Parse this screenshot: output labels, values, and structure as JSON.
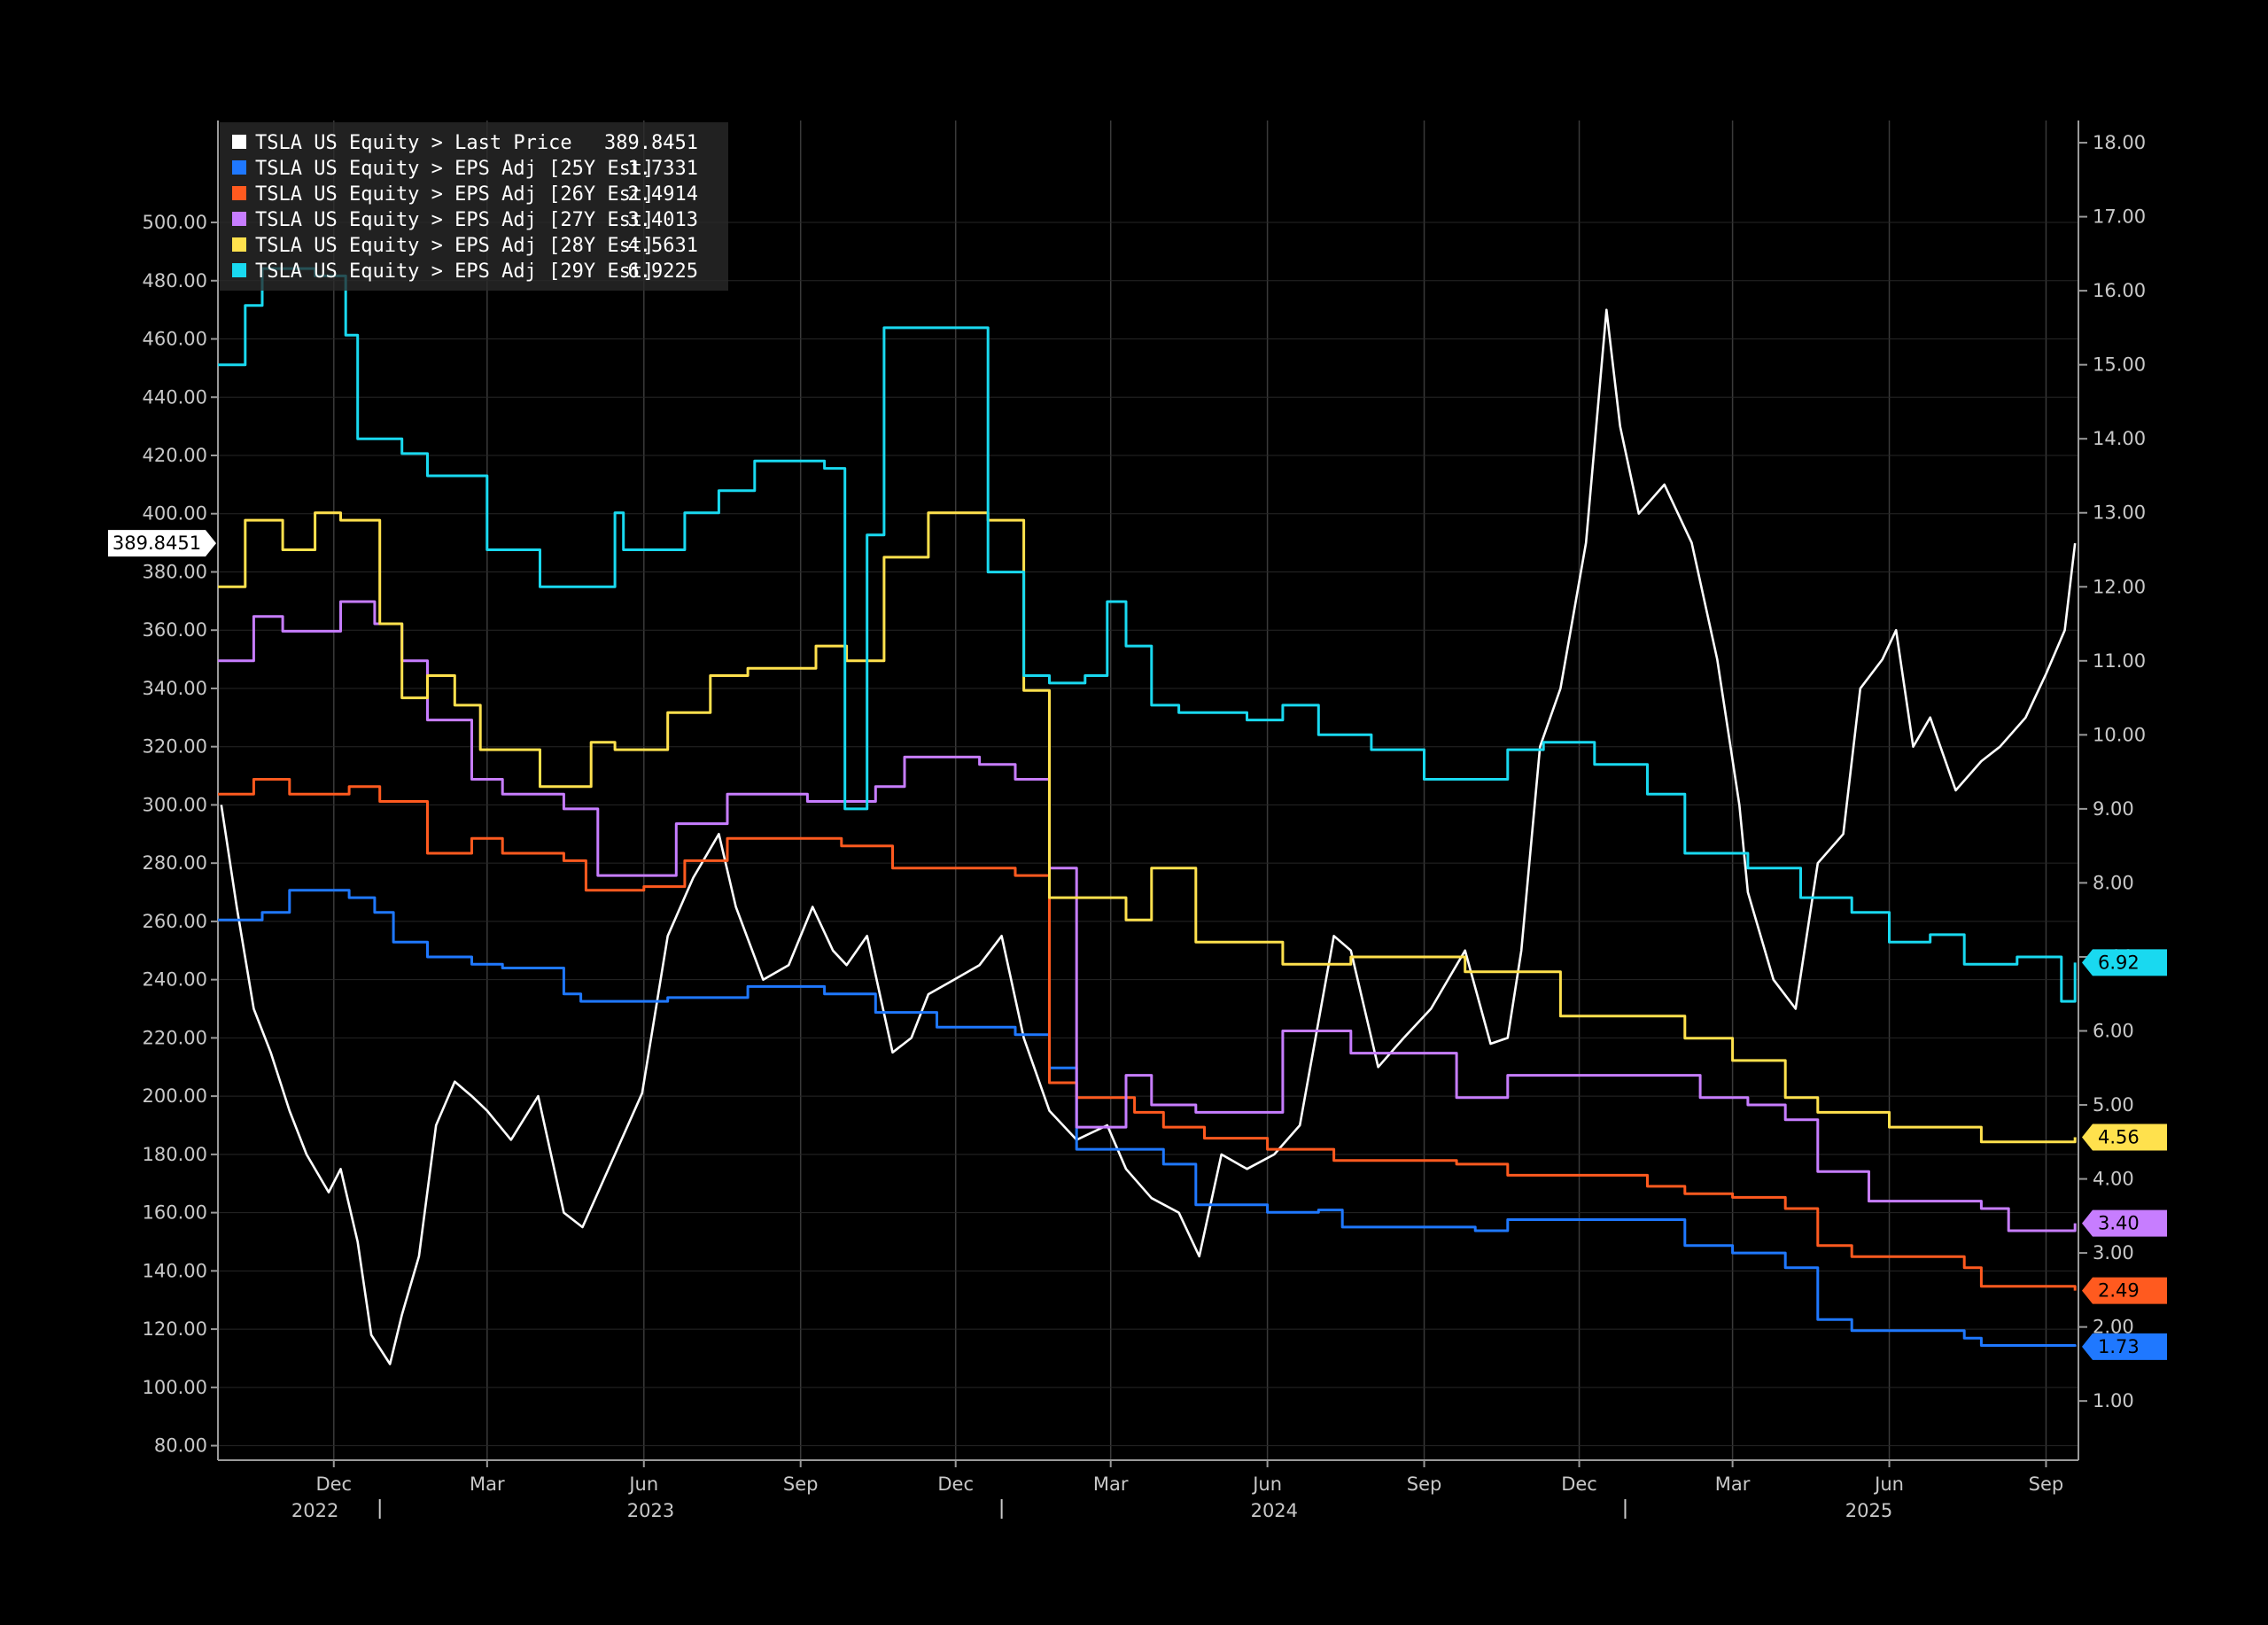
{
  "chart_data": {
    "type": "line",
    "grid": true,
    "legend_position": "top-left",
    "x_tick_labels": [
      "Dec",
      "Mar",
      "Jun",
      "Sep",
      "Dec",
      "Mar",
      "Jun",
      "Sep",
      "Dec",
      "Mar",
      "Jun",
      "Sep"
    ],
    "x_tick_dates": [
      "2022-12-01",
      "2023-03-01",
      "2023-06-01",
      "2023-09-01",
      "2023-12-01",
      "2024-03-01",
      "2024-06-01",
      "2024-09-01",
      "2024-12-01",
      "2025-03-01",
      "2025-06-01",
      "2025-09-01"
    ],
    "x_year_labels": [
      "2022",
      "2023",
      "2024",
      "2025"
    ],
    "x_range": [
      "2022-09-24",
      "2025-09-20"
    ],
    "y_left": {
      "min": 75,
      "max": 535,
      "ticks": [
        80,
        100,
        120,
        140,
        160,
        180,
        200,
        220,
        240,
        260,
        280,
        300,
        320,
        340,
        360,
        380,
        400,
        420,
        440,
        460,
        480,
        500
      ],
      "tick_labels": [
        "80.00",
        "100.00",
        "120.00",
        "140.00",
        "160.00",
        "180.00",
        "200.00",
        "220.00",
        "240.00",
        "260.00",
        "280.00",
        "300.00",
        "320.00",
        "340.00",
        "360.00",
        "380.00",
        "400.00",
        "420.00",
        "440.00",
        "460.00",
        "480.00",
        "500.00"
      ]
    },
    "y_right": {
      "min": 0.2,
      "max": 18.3,
      "ticks": [
        1,
        2,
        3,
        4,
        5,
        6,
        7,
        8,
        9,
        10,
        11,
        12,
        13,
        14,
        15,
        16,
        17,
        18
      ],
      "tick_labels": [
        "1.00",
        "2.00",
        "3.00",
        "4.00",
        "5.00",
        "6.00",
        "7.00",
        "8.00",
        "9.00",
        "10.00",
        "11.00",
        "12.00",
        "13.00",
        "14.00",
        "15.00",
        "16.00",
        "17.00",
        "18.00"
      ]
    },
    "series": [
      {
        "name": "TSLA US Equity > Last Price",
        "legend_value": "389.8451",
        "tag": "389.8451",
        "color": "#ffffff",
        "axis": "left",
        "x": [
          "2022-09-26",
          "2022-10-05",
          "2022-10-15",
          "2022-10-25",
          "2022-11-05",
          "2022-11-15",
          "2022-11-28",
          "2022-12-05",
          "2022-12-15",
          "2022-12-23",
          "2023-01-03",
          "2023-01-10",
          "2023-01-20",
          "2023-01-30",
          "2023-02-10",
          "2023-02-20",
          "2023-03-01",
          "2023-03-15",
          "2023-03-31",
          "2023-04-15",
          "2023-04-26",
          "2023-05-15",
          "2023-05-31",
          "2023-06-15",
          "2023-06-30",
          "2023-07-15",
          "2023-07-25",
          "2023-08-10",
          "2023-08-25",
          "2023-09-08",
          "2023-09-20",
          "2023-09-28",
          "2023-10-10",
          "2023-10-25",
          "2023-11-05",
          "2023-11-15",
          "2023-11-30",
          "2023-12-15",
          "2023-12-28",
          "2024-01-10",
          "2024-01-25",
          "2024-02-10",
          "2024-02-28",
          "2024-03-10",
          "2024-03-25",
          "2024-04-10",
          "2024-04-22",
          "2024-05-05",
          "2024-05-20",
          "2024-06-05",
          "2024-06-20",
          "2024-07-10",
          "2024-07-20",
          "2024-08-05",
          "2024-08-20",
          "2024-09-05",
          "2024-09-25",
          "2024-10-10",
          "2024-10-20",
          "2024-10-28",
          "2024-11-08",
          "2024-11-20",
          "2024-12-05",
          "2024-12-17",
          "2024-12-25",
          "2025-01-05",
          "2025-01-20",
          "2025-02-05",
          "2025-02-20",
          "2025-03-05",
          "2025-03-10",
          "2025-03-25",
          "2025-04-07",
          "2025-04-20",
          "2025-05-05",
          "2025-05-15",
          "2025-05-28",
          "2025-06-05",
          "2025-06-15",
          "2025-06-25",
          "2025-07-10",
          "2025-07-25",
          "2025-08-05",
          "2025-08-20",
          "2025-09-01",
          "2025-09-12",
          "2025-09-18"
        ],
        "values": [
          300,
          265,
          230,
          215,
          195,
          180,
          167,
          175,
          150,
          118,
          108,
          125,
          145,
          190,
          205,
          200,
          195,
          185,
          200,
          160,
          155,
          180,
          201,
          255,
          275,
          290,
          265,
          240,
          245,
          265,
          250,
          245,
          255,
          215,
          220,
          235,
          240,
          245,
          255,
          220,
          195,
          185,
          190,
          175,
          165,
          160,
          145,
          180,
          175,
          180,
          190,
          255,
          250,
          210,
          220,
          230,
          250,
          218,
          220,
          250,
          320,
          340,
          390,
          470,
          430,
          400,
          410,
          390,
          350,
          300,
          270,
          240,
          230,
          280,
          290,
          340,
          350,
          360,
          320,
          330,
          305,
          315,
          320,
          330,
          345,
          360,
          389.8451
        ]
      },
      {
        "name": "TSLA US Equity > EPS Adj [25Y Est]",
        "legend_value": "1.7331",
        "tag": "1.73",
        "color": "#1f78ff",
        "axis": "right",
        "x": [
          "2022-09-24",
          "2022-10-20",
          "2022-11-05",
          "2022-12-10",
          "2022-12-25",
          "2023-01-05",
          "2023-01-25",
          "2023-02-20",
          "2023-03-10",
          "2023-04-15",
          "2023-04-25",
          "2023-06-15",
          "2023-08-01",
          "2023-09-15",
          "2023-10-15",
          "2023-11-20",
          "2024-01-05",
          "2024-01-25",
          "2024-02-10",
          "2024-03-01",
          "2024-04-01",
          "2024-04-20",
          "2024-06-01",
          "2024-07-01",
          "2024-07-15",
          "2024-10-01",
          "2024-10-20",
          "2025-01-20",
          "2025-02-01",
          "2025-03-01",
          "2025-04-01",
          "2025-04-20",
          "2025-05-10",
          "2025-07-15",
          "2025-07-25",
          "2025-09-18"
        ],
        "values": [
          7.5,
          7.6,
          7.9,
          7.8,
          7.6,
          7.2,
          7.0,
          6.9,
          6.85,
          6.5,
          6.4,
          6.45,
          6.6,
          6.5,
          6.25,
          6.05,
          5.95,
          5.5,
          4.4,
          4.4,
          4.2,
          3.65,
          3.55,
          3.58,
          3.35,
          3.3,
          3.45,
          3.45,
          3.1,
          3.0,
          2.8,
          2.1,
          1.95,
          1.85,
          1.75,
          1.7331
        ]
      },
      {
        "name": "TSLA US Equity > EPS Adj [26Y Est]",
        "legend_value": "2.4914",
        "tag": "2.49",
        "color": "#ff5a1f",
        "axis": "right",
        "x": [
          "2022-09-24",
          "2022-10-15",
          "2022-11-05",
          "2022-12-10",
          "2022-12-28",
          "2023-01-25",
          "2023-02-20",
          "2023-03-10",
          "2023-04-15",
          "2023-04-28",
          "2023-06-01",
          "2023-06-25",
          "2023-07-20",
          "2023-08-15",
          "2023-09-25",
          "2023-10-25",
          "2023-11-20",
          "2024-01-05",
          "2024-01-25",
          "2024-02-10",
          "2024-03-15",
          "2024-04-01",
          "2024-04-25",
          "2024-06-01",
          "2024-07-10",
          "2024-09-20",
          "2024-10-20",
          "2024-12-01",
          "2025-01-10",
          "2025-02-01",
          "2025-03-01",
          "2025-04-01",
          "2025-04-20",
          "2025-05-10",
          "2025-07-15",
          "2025-07-25",
          "2025-09-18"
        ],
        "values": [
          9.2,
          9.4,
          9.2,
          9.3,
          9.1,
          8.4,
          8.6,
          8.4,
          8.3,
          7.9,
          7.95,
          8.3,
          8.6,
          8.6,
          8.5,
          8.2,
          8.2,
          8.1,
          5.3,
          5.1,
          4.9,
          4.7,
          4.55,
          4.4,
          4.25,
          4.2,
          4.05,
          4.05,
          3.9,
          3.8,
          3.75,
          3.6,
          3.1,
          2.95,
          2.8,
          2.55,
          2.4914
        ]
      },
      {
        "name": "TSLA US Equity > EPS Adj [27Y Est]",
        "legend_value": "3.4013",
        "tag": "3.40",
        "color": "#c77dff",
        "axis": "right",
        "x": [
          "2022-09-24",
          "2022-10-15",
          "2022-11-01",
          "2022-12-05",
          "2022-12-25",
          "2023-01-10",
          "2023-01-25",
          "2023-02-20",
          "2023-03-10",
          "2023-04-15",
          "2023-05-05",
          "2023-05-28",
          "2023-06-20",
          "2023-07-20",
          "2023-09-05",
          "2023-10-15",
          "2023-11-01",
          "2023-12-15",
          "2024-01-05",
          "2024-01-25",
          "2024-02-10",
          "2024-03-10",
          "2024-03-25",
          "2024-04-20",
          "2024-06-10",
          "2024-07-20",
          "2024-09-20",
          "2024-10-20",
          "2025-01-20",
          "2025-02-10",
          "2025-03-10",
          "2025-04-01",
          "2025-04-20",
          "2025-05-20",
          "2025-07-25",
          "2025-08-10",
          "2025-09-18"
        ],
        "values": [
          11.0,
          11.6,
          11.4,
          11.8,
          11.5,
          11.0,
          10.2,
          9.4,
          9.2,
          9.0,
          8.1,
          8.1,
          8.8,
          9.2,
          9.1,
          9.3,
          9.7,
          9.6,
          9.4,
          8.2,
          4.7,
          5.4,
          5.0,
          4.9,
          6.0,
          5.7,
          5.1,
          5.4,
          5.4,
          5.1,
          5.0,
          4.8,
          4.1,
          3.7,
          3.6,
          3.3,
          3.4013
        ]
      },
      {
        "name": "TSLA US Equity > EPS Adj [28Y Est]",
        "legend_value": "4.5631",
        "tag": "4.56",
        "color": "#ffe14d",
        "axis": "right",
        "x": [
          "2022-09-24",
          "2022-10-10",
          "2022-11-01",
          "2022-11-20",
          "2022-12-05",
          "2022-12-28",
          "2023-01-10",
          "2023-01-25",
          "2023-02-10",
          "2023-02-25",
          "2023-04-01",
          "2023-05-01",
          "2023-05-15",
          "2023-06-15",
          "2023-07-10",
          "2023-08-01",
          "2023-09-10",
          "2023-09-28",
          "2023-10-20",
          "2023-11-15",
          "2023-12-20",
          "2024-01-10",
          "2024-01-25",
          "2024-02-20",
          "2024-03-10",
          "2024-03-25",
          "2024-04-20",
          "2024-06-10",
          "2024-07-20",
          "2024-09-25",
          "2024-10-20",
          "2024-11-20",
          "2025-01-10",
          "2025-02-01",
          "2025-03-01",
          "2025-04-01",
          "2025-04-20",
          "2025-06-01",
          "2025-07-25",
          "2025-09-18"
        ],
        "values": [
          12.0,
          12.9,
          12.5,
          13.0,
          12.9,
          11.5,
          10.5,
          10.8,
          10.4,
          9.8,
          9.3,
          9.9,
          9.8,
          10.3,
          10.8,
          10.9,
          11.2,
          11.0,
          12.4,
          13.0,
          12.9,
          10.6,
          7.8,
          7.8,
          7.5,
          8.2,
          7.2,
          6.9,
          7.0,
          6.8,
          6.8,
          6.2,
          6.2,
          5.9,
          5.6,
          5.1,
          4.9,
          4.7,
          4.5,
          4.5631
        ]
      },
      {
        "name": "TSLA US Equity > EPS Adj [29Y Est]",
        "legend_value": "6.9225",
        "tag": "6.92",
        "color": "#19d9f0",
        "axis": "right",
        "x": [
          "2022-09-24",
          "2022-10-10",
          "2022-10-20",
          "2022-11-20",
          "2022-12-08",
          "2022-12-15",
          "2023-01-10",
          "2023-01-25",
          "2023-03-01",
          "2023-04-01",
          "2023-05-15",
          "2023-05-20",
          "2023-06-25",
          "2023-07-15",
          "2023-08-05",
          "2023-09-15",
          "2023-09-27",
          "2023-10-10",
          "2023-10-20",
          "2023-11-20",
          "2023-12-20",
          "2024-01-10",
          "2024-01-25",
          "2024-02-15",
          "2024-02-28",
          "2024-03-10",
          "2024-03-25",
          "2024-04-10",
          "2024-05-20",
          "2024-06-10",
          "2024-07-01",
          "2024-08-01",
          "2024-09-01",
          "2024-10-20",
          "2024-11-10",
          "2024-12-10",
          "2025-01-10",
          "2025-02-01",
          "2025-03-10",
          "2025-04-10",
          "2025-05-10",
          "2025-06-01",
          "2025-06-25",
          "2025-07-15",
          "2025-08-15",
          "2025-09-10",
          "2025-09-18"
        ],
        "values": [
          15.0,
          15.8,
          16.3,
          16.2,
          15.4,
          14.0,
          13.8,
          13.5,
          12.5,
          12.0,
          13.0,
          12.5,
          13.0,
          13.3,
          13.7,
          13.6,
          9.0,
          12.7,
          15.5,
          15.5,
          12.2,
          10.8,
          10.7,
          10.8,
          11.8,
          11.2,
          10.4,
          10.3,
          10.2,
          10.4,
          10.0,
          9.8,
          9.4,
          9.8,
          9.9,
          9.6,
          9.2,
          8.4,
          8.2,
          7.8,
          7.6,
          7.2,
          7.3,
          6.9,
          7.0,
          6.4,
          6.9225
        ]
      }
    ]
  }
}
